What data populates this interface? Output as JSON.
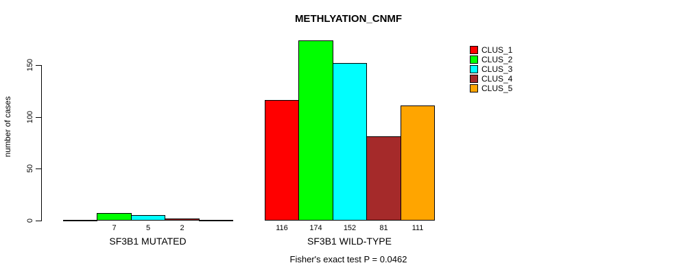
{
  "chart_data": {
    "type": "bar",
    "title": "METHLYATION_CNMF",
    "ylabel": "number of cases",
    "footnote": "Fisher's exact test P = 0.0462",
    "ylim": [
      0,
      150
    ],
    "yticks": [
      0,
      50,
      100,
      150
    ],
    "legend_position": "top-right",
    "grid": false,
    "clusters": [
      {
        "name": "CLUS_1",
        "color": "#FF0000"
      },
      {
        "name": "CLUS_2",
        "color": "#00FF00"
      },
      {
        "name": "CLUS_3",
        "color": "#00FFFF"
      },
      {
        "name": "CLUS_4",
        "color": "#A52A2A"
      },
      {
        "name": "CLUS_5",
        "color": "#FFA500"
      }
    ],
    "groups": [
      {
        "label": "SF3B1 MUTATED",
        "values": [
          0,
          7,
          5,
          2,
          0
        ]
      },
      {
        "label": "SF3B1 WILD-TYPE",
        "values": [
          116,
          174,
          152,
          81,
          111
        ]
      }
    ]
  }
}
